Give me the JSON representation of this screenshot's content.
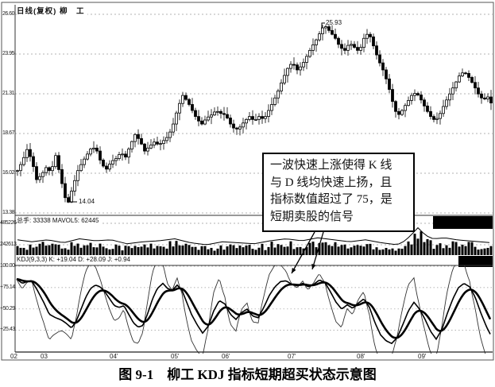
{
  "figure": {
    "title": "日线(复权) 柳　工",
    "caption": "图 9-1　柳工 KDJ 指标短期超买状态示意图",
    "annotation": {
      "lines": [
        "一波快速上涨使得 K 线",
        "与 D 线均快速上扬，且",
        "指标数值超过了 75，是",
        "短期卖股的信号"
      ]
    },
    "price_panel": {
      "y_ticks": [
        "26.60",
        "23.95",
        "21.31",
        "18.67",
        "16.02",
        "13.38"
      ],
      "high_label": "25.93",
      "low_label": "14.04"
    },
    "volume_panel": {
      "header": "总手: 33338 MAVOL5: 62445",
      "y_ticks": [
        "485226",
        "242613"
      ]
    },
    "kdj_panel": {
      "header": "KDJ(9,3,3) K: +19.04 D: +28.09 J: +0.94",
      "y_ticks": [
        "100.00",
        "+75.14",
        "+50.29",
        "+25.43"
      ]
    },
    "x_labels": [
      "02",
      "03",
      "04'",
      "05'",
      "06'",
      "07'",
      "08'",
      "09'"
    ]
  },
  "chart_data": {
    "type": "candlestick",
    "title": "日线(复权) 柳工 (Liugong daily, adjusted)",
    "x_labels": [
      "02",
      "03",
      "04'",
      "05'",
      "06'",
      "07'",
      "08'",
      "09'"
    ],
    "panels": [
      "price",
      "volume",
      "kdj"
    ],
    "price": {
      "ylim": [
        13.38,
        26.6
      ],
      "y_ticks": [
        26.6,
        23.95,
        21.31,
        18.67,
        16.02,
        13.38
      ],
      "annotated_high": 25.93,
      "annotated_low": 14.04,
      "close_waypoints": [
        [
          22,
          16.2
        ],
        [
          28,
          16.8
        ],
        [
          34,
          17.6
        ],
        [
          40,
          16.9
        ],
        [
          46,
          15.6
        ],
        [
          52,
          15.9
        ],
        [
          58,
          16.4
        ],
        [
          64,
          16.1
        ],
        [
          70,
          17.2
        ],
        [
          76,
          15.8
        ],
        [
          82,
          14.4
        ],
        [
          86,
          14.1
        ],
        [
          92,
          15.2
        ],
        [
          98,
          16.2
        ],
        [
          104,
          16.8
        ],
        [
          110,
          17.3
        ],
        [
          116,
          17.8
        ],
        [
          122,
          17.5
        ],
        [
          128,
          16.6
        ],
        [
          134,
          16.3
        ],
        [
          140,
          16.8
        ],
        [
          146,
          17.0
        ],
        [
          152,
          17.4
        ],
        [
          158,
          17.1
        ],
        [
          164,
          17.9
        ],
        [
          170,
          18.6
        ],
        [
          176,
          18.2
        ],
        [
          182,
          17.5
        ],
        [
          188,
          17.8
        ],
        [
          194,
          18.1
        ],
        [
          200,
          17.9
        ],
        [
          206,
          18.2
        ],
        [
          212,
          18.5
        ],
        [
          218,
          19.3
        ],
        [
          224,
          20.4
        ],
        [
          230,
          21.2
        ],
        [
          236,
          20.8
        ],
        [
          242,
          20.2
        ],
        [
          248,
          19.6
        ],
        [
          254,
          19.3
        ],
        [
          260,
          19.7
        ],
        [
          266,
          19.9
        ],
        [
          272,
          20.2
        ],
        [
          278,
          20.0
        ],
        [
          284,
          19.9
        ],
        [
          290,
          19.3
        ],
        [
          296,
          18.9
        ],
        [
          302,
          19.1
        ],
        [
          308,
          19.5
        ],
        [
          314,
          19.8
        ],
        [
          320,
          19.5
        ],
        [
          326,
          19.8
        ],
        [
          332,
          19.6
        ],
        [
          338,
          20.2
        ],
        [
          344,
          20.8
        ],
        [
          350,
          21.5
        ],
        [
          356,
          22.3
        ],
        [
          362,
          23.0
        ],
        [
          368,
          23.4
        ],
        [
          374,
          22.9
        ],
        [
          380,
          23.2
        ],
        [
          386,
          23.8
        ],
        [
          392,
          24.4
        ],
        [
          398,
          24.9
        ],
        [
          404,
          25.5
        ],
        [
          408,
          25.9
        ],
        [
          416,
          25.4
        ],
        [
          422,
          25.0
        ],
        [
          428,
          24.4
        ],
        [
          434,
          24.2
        ],
        [
          440,
          24.7
        ],
        [
          446,
          24.4
        ],
        [
          452,
          24.1
        ],
        [
          458,
          25.0
        ],
        [
          464,
          25.4
        ],
        [
          470,
          24.5
        ],
        [
          476,
          23.6
        ],
        [
          482,
          22.9
        ],
        [
          488,
          22.0
        ],
        [
          494,
          20.8
        ],
        [
          500,
          19.8
        ],
        [
          506,
          20.2
        ],
        [
          512,
          20.7
        ],
        [
          518,
          21.2
        ],
        [
          524,
          21.4
        ],
        [
          530,
          20.9
        ],
        [
          536,
          20.3
        ],
        [
          542,
          19.8
        ],
        [
          548,
          19.5
        ],
        [
          554,
          20.0
        ],
        [
          560,
          20.7
        ],
        [
          566,
          21.3
        ],
        [
          572,
          21.9
        ],
        [
          578,
          22.5
        ],
        [
          584,
          22.8
        ],
        [
          590,
          22.4
        ],
        [
          596,
          21.9
        ],
        [
          602,
          21.3
        ],
        [
          608,
          20.9
        ],
        [
          614,
          21.1
        ],
        [
          618,
          20.7
        ]
      ]
    },
    "volume": {
      "last_volume": 33338,
      "mavol5": 62445,
      "y_ticks": [
        485226,
        242613
      ],
      "envelope_waypoints": [
        [
          22,
          13
        ],
        [
          40,
          11
        ],
        [
          60,
          13
        ],
        [
          80,
          10
        ],
        [
          100,
          14
        ],
        [
          120,
          12
        ],
        [
          140,
          13
        ],
        [
          160,
          9
        ],
        [
          180,
          11
        ],
        [
          200,
          12
        ],
        [
          220,
          14
        ],
        [
          240,
          10
        ],
        [
          260,
          8
        ],
        [
          280,
          11
        ],
        [
          300,
          10
        ],
        [
          320,
          9
        ],
        [
          340,
          12
        ],
        [
          360,
          14
        ],
        [
          380,
          12
        ],
        [
          400,
          15
        ],
        [
          420,
          13
        ],
        [
          440,
          11
        ],
        [
          460,
          13
        ],
        [
          480,
          10
        ],
        [
          500,
          8
        ],
        [
          510,
          12
        ],
        [
          520,
          20
        ],
        [
          527,
          26
        ],
        [
          534,
          18
        ],
        [
          545,
          14
        ],
        [
          560,
          15
        ],
        [
          575,
          13
        ],
        [
          590,
          12
        ],
        [
          605,
          11
        ],
        [
          618,
          10
        ]
      ]
    },
    "kdj": {
      "params": [
        9,
        3,
        3
      ],
      "last_k": 19.04,
      "last_d": 28.09,
      "last_j": 0.94,
      "y_ticks": [
        100.0,
        75.14,
        50.29,
        25.43
      ],
      "k_waypoints": [
        [
          21,
          85
        ],
        [
          28,
          80
        ],
        [
          34,
          82
        ],
        [
          40,
          83
        ],
        [
          47,
          72
        ],
        [
          55,
          58
        ],
        [
          62,
          44
        ],
        [
          70,
          40
        ],
        [
          78,
          37
        ],
        [
          84,
          33
        ],
        [
          90,
          28
        ],
        [
          96,
          36
        ],
        [
          102,
          50
        ],
        [
          108,
          64
        ],
        [
          114,
          74
        ],
        [
          120,
          78
        ],
        [
          126,
          76
        ],
        [
          132,
          70
        ],
        [
          138,
          62
        ],
        [
          144,
          54
        ],
        [
          150,
          52
        ],
        [
          156,
          54
        ],
        [
          162,
          44
        ],
        [
          168,
          34
        ],
        [
          174,
          29
        ],
        [
          180,
          31
        ],
        [
          186,
          45
        ],
        [
          192,
          62
        ],
        [
          198,
          74
        ],
        [
          205,
          80
        ],
        [
          211,
          74
        ],
        [
          217,
          72
        ],
        [
          223,
          78
        ],
        [
          229,
          72
        ],
        [
          235,
          58
        ],
        [
          241,
          44
        ],
        [
          248,
          32
        ],
        [
          255,
          22
        ],
        [
          262,
          30
        ],
        [
          269,
          48
        ],
        [
          276,
          60
        ],
        [
          283,
          56
        ],
        [
          290,
          44
        ],
        [
          297,
          38
        ],
        [
          304,
          46
        ],
        [
          311,
          50
        ],
        [
          318,
          42
        ],
        [
          325,
          40
        ],
        [
          332,
          52
        ],
        [
          339,
          66
        ],
        [
          346,
          76
        ],
        [
          353,
          82
        ],
        [
          360,
          83
        ],
        [
          367,
          79
        ],
        [
          374,
          77
        ],
        [
          381,
          80
        ],
        [
          388,
          76
        ],
        [
          395,
          79
        ],
        [
          402,
          84
        ],
        [
          409,
          81
        ],
        [
          416,
          70
        ],
        [
          423,
          58
        ],
        [
          430,
          50
        ],
        [
          437,
          55
        ],
        [
          444,
          51
        ],
        [
          451,
          57
        ],
        [
          458,
          62
        ],
        [
          465,
          52
        ],
        [
          472,
          34
        ],
        [
          479,
          20
        ],
        [
          486,
          13
        ],
        [
          493,
          10
        ],
        [
          500,
          17
        ],
        [
          507,
          32
        ],
        [
          514,
          48
        ],
        [
          521,
          58
        ],
        [
          528,
          50
        ],
        [
          535,
          38
        ],
        [
          542,
          24
        ],
        [
          549,
          15
        ],
        [
          556,
          26
        ],
        [
          563,
          45
        ],
        [
          570,
          62
        ],
        [
          577,
          75
        ],
        [
          584,
          80
        ],
        [
          591,
          76
        ],
        [
          598,
          64
        ],
        [
          605,
          46
        ],
        [
          612,
          30
        ],
        [
          618,
          19
        ]
      ]
    }
  }
}
